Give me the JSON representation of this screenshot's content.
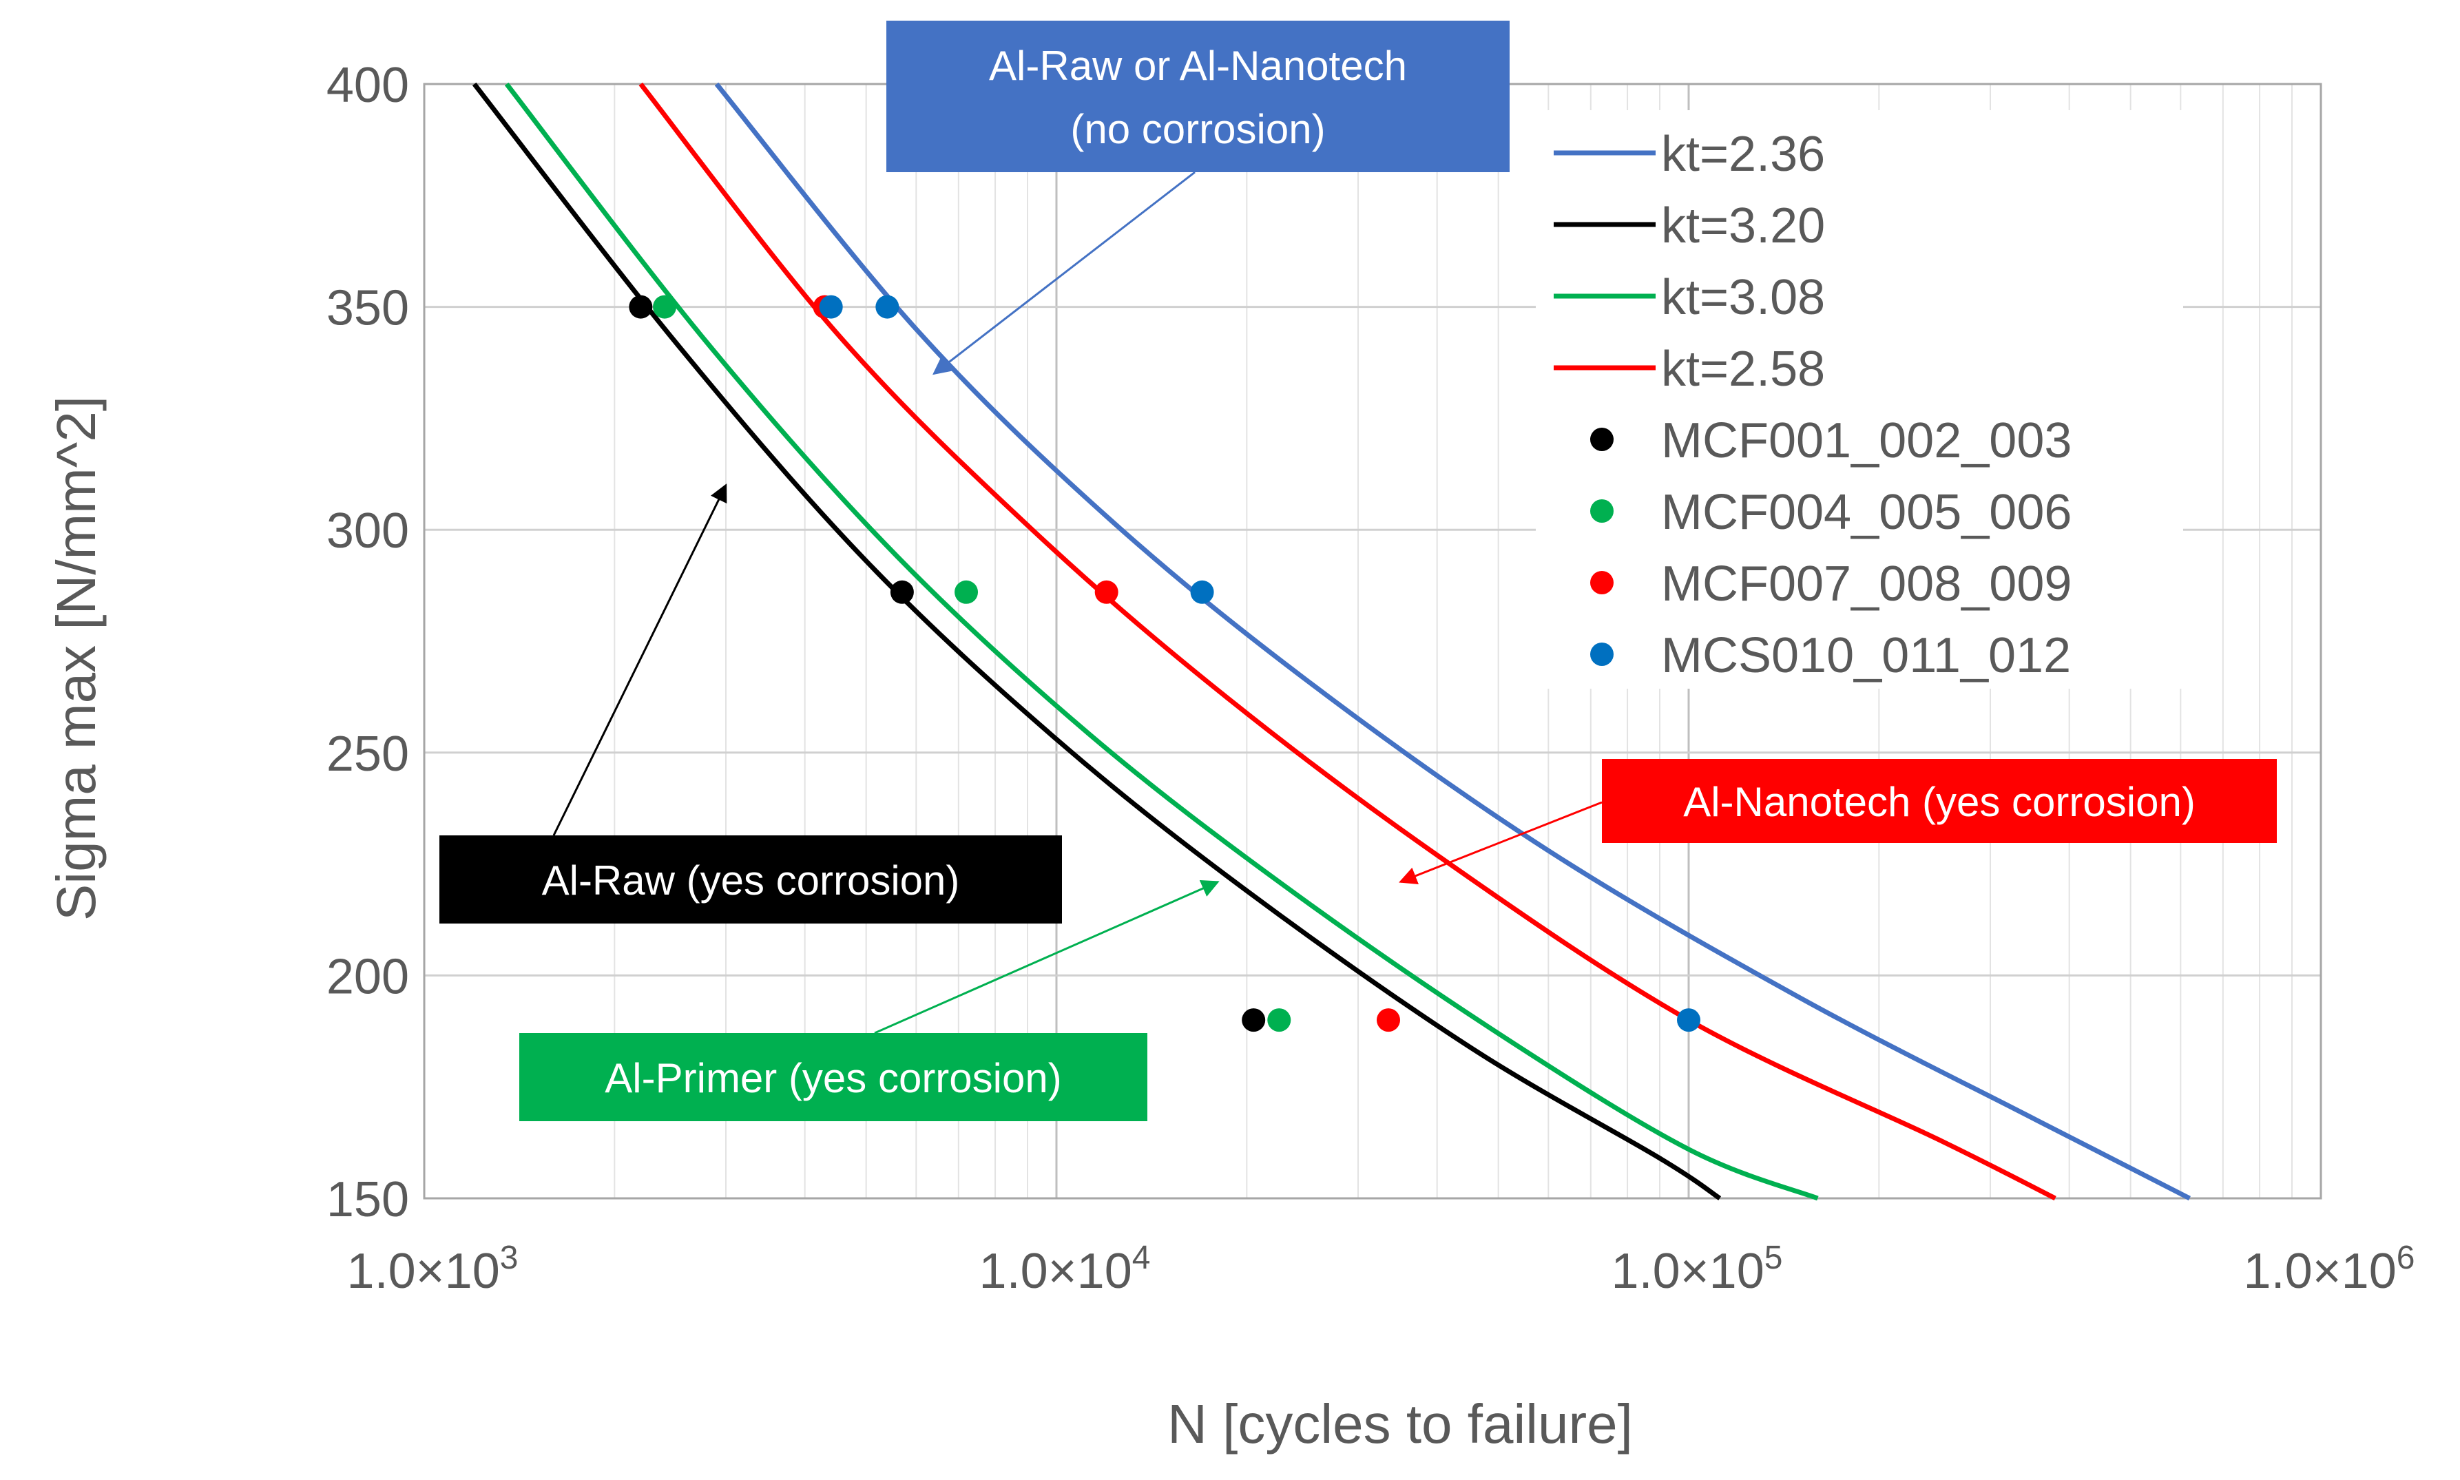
{
  "chart_data": {
    "type": "scatter",
    "title": "",
    "xlabel": "N [cycles to failure]",
    "ylabel": "Sigma max [N/mm^2]",
    "x_scale": "log",
    "xlim": [
      1000,
      1000000
    ],
    "ylim": [
      150,
      400
    ],
    "grid": true,
    "x_ticks": [
      {
        "value": 1000,
        "mantissa": "1.0×10",
        "exp": "3"
      },
      {
        "value": 10000,
        "mantissa": "1.0×10",
        "exp": "4"
      },
      {
        "value": 100000,
        "mantissa": "1.0×10",
        "exp": "5"
      },
      {
        "value": 1000000,
        "mantissa": "1.0×10",
        "exp": "6"
      }
    ],
    "y_ticks": [
      {
        "value": 150,
        "label": "150"
      },
      {
        "value": 200,
        "label": "200"
      },
      {
        "value": 250,
        "label": "250"
      },
      {
        "value": 300,
        "label": "300"
      },
      {
        "value": 350,
        "label": "350"
      },
      {
        "value": 400,
        "label": "400"
      }
    ],
    "legend_position": "top-right",
    "series": [
      {
        "name": "kt=2.36",
        "kind": "line",
        "color": "#4472C4",
        "x": [
          2900,
          6000,
          12000,
          25000,
          60000,
          150000,
          350000,
          620000
        ],
        "y": [
          400,
          345,
          303,
          266,
          228,
          195,
          168,
          150
        ]
      },
      {
        "name": "kt=3.20",
        "kind": "line",
        "color": "#000000",
        "x": [
          1200,
          2500,
          5000,
          10000,
          20000,
          45000,
          90000,
          112000
        ],
        "y": [
          400,
          342,
          293,
          253,
          219,
          184,
          159,
          150
        ]
      },
      {
        "name": "kt=3.08",
        "kind": "line",
        "color": "#00B050",
        "x": [
          1350,
          2800,
          5600,
          11300,
          23000,
          50000,
          100000,
          160000
        ],
        "y": [
          400,
          342,
          294,
          254,
          220,
          187,
          161,
          150
        ]
      },
      {
        "name": "kt=2.58",
        "kind": "line",
        "color": "#FF0000",
        "x": [
          2200,
          4500,
          9000,
          18000,
          40000,
          100000,
          250000,
          380000
        ],
        "y": [
          400,
          344,
          301,
          264,
          227,
          190,
          163,
          150
        ]
      },
      {
        "name": "MCF001_002_003",
        "kind": "points",
        "color": "#000000",
        "x": [
          2200,
          5700,
          20500
        ],
        "y": [
          350,
          286,
          190
        ]
      },
      {
        "name": "MCF004_005_006",
        "kind": "points",
        "color": "#00B050",
        "x": [
          2400,
          7200,
          22500
        ],
        "y": [
          350,
          286,
          190
        ]
      },
      {
        "name": "MCF007_008_009",
        "kind": "points",
        "color": "#FF0000",
        "x": [
          4300,
          12000,
          33500
        ],
        "y": [
          350,
          286,
          190
        ]
      },
      {
        "name": "MCS010_011_012",
        "kind": "points",
        "color": "#0070C0",
        "x": [
          4400,
          5400,
          17000,
          100000
        ],
        "y": [
          350,
          350,
          286,
          190
        ]
      }
    ],
    "annotations": [
      {
        "lines": [
          "Al-Raw or Al-Nanotech",
          "(no corrosion)"
        ],
        "bg": "#4472C4",
        "arrow_color": "#4472C4",
        "arrow_to": [
          6400,
          335
        ]
      },
      {
        "lines": [
          "Al-Nanotech (yes corrosion)"
        ],
        "bg": "#FF0000",
        "arrow_color": "#FF0000",
        "arrow_to": [
          35000,
          221
        ]
      },
      {
        "lines": [
          "Al-Raw  (yes corrosion)"
        ],
        "bg": "#000000",
        "arrow_color": "#000000",
        "arrow_to": [
          3000,
          310
        ]
      },
      {
        "lines": [
          "Al-Primer  (yes corrosion)"
        ],
        "bg": "#00B050",
        "arrow_color": "#00B050",
        "arrow_to": [
          18000,
          221
        ]
      }
    ]
  }
}
